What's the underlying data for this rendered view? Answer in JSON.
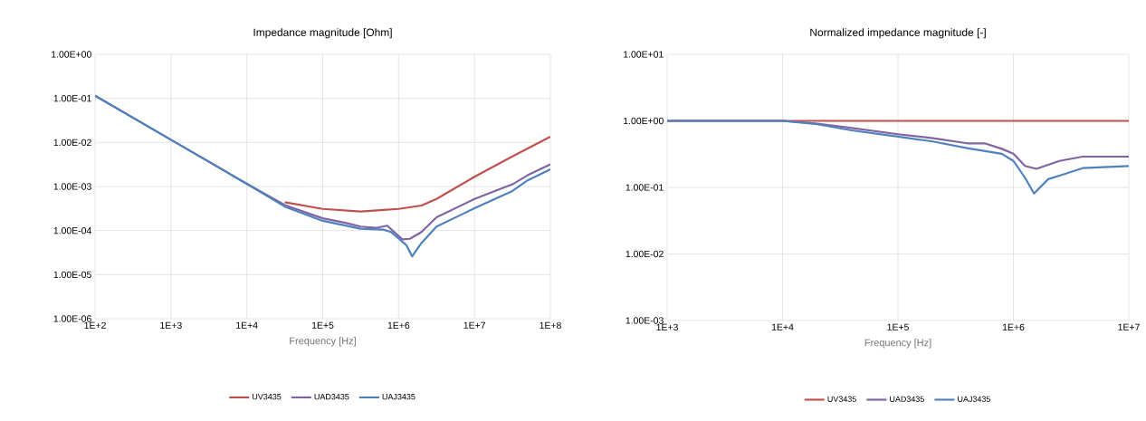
{
  "chart_data": [
    {
      "type": "line",
      "title": "Impedance magnitude [Ohm]",
      "xlabel": "Frequency [Hz]",
      "log": "xy",
      "grid": true,
      "legend": "bottom",
      "xlim": [
        100,
        100000000
      ],
      "ylim": [
        1e-06,
        1
      ],
      "xticks": [
        {
          "value": 100,
          "label": "1E+2"
        },
        {
          "value": 1000,
          "label": "1E+3"
        },
        {
          "value": 10000,
          "label": "1E+4"
        },
        {
          "value": 100000,
          "label": "1E+5"
        },
        {
          "value": 1000000,
          "label": "1E+6"
        },
        {
          "value": 10000000,
          "label": "1E+7"
        },
        {
          "value": 100000000,
          "label": "1E+8"
        }
      ],
      "yticks": [
        {
          "value": 1e-06,
          "label": "1.00E-06"
        },
        {
          "value": 1e-05,
          "label": "1.00E-05"
        },
        {
          "value": 0.0001,
          "label": "1.00E-04"
        },
        {
          "value": 0.001,
          "label": "1.00E-03"
        },
        {
          "value": 0.01,
          "label": "1.00E-02"
        },
        {
          "value": 0.1,
          "label": "1.00E-01"
        },
        {
          "value": 1,
          "label": "1.00E+00"
        }
      ],
      "series": [
        {
          "name": "UV3435",
          "color": "#c0504d",
          "x": [
            31600,
            100000,
            316000,
            631000,
            1000000,
            2000000,
            3160000,
            10000000,
            31600000,
            100000000
          ],
          "values": [
            0.00044,
            0.00031,
            0.00027,
            0.000295,
            0.00031,
            0.00037,
            0.00052,
            0.00166,
            0.0048,
            0.0135
          ]
        },
        {
          "name": "UAD3435",
          "color": "#8064a2",
          "x": [
            100,
            1000,
            10000,
            31600,
            100000,
            200000,
            316000,
            501000,
            708000,
            1120000,
            1410000,
            2000000,
            3160000,
            10000000,
            31600000,
            50100000,
            100000000
          ],
          "values": [
            0.115,
            0.0115,
            0.00115,
            0.00038,
            0.00019,
            0.00015,
            0.000123,
            0.000115,
            0.000129,
            6.3e-05,
            6.5e-05,
            9.3e-05,
            0.0002,
            0.00052,
            0.00112,
            0.0018,
            0.0032
          ]
        },
        {
          "name": "UAJ3435",
          "color": "#4f81bd",
          "x": [
            100,
            1000,
            10000,
            31600,
            100000,
            316000,
            631000,
            794000,
            1260000,
            1510000,
            2000000,
            3160000,
            10000000,
            31600000,
            50100000,
            100000000
          ],
          "values": [
            0.115,
            0.0115,
            0.00115,
            0.00035,
            0.000166,
            0.00011,
            0.000105,
            9.3e-05,
            4.7e-05,
            2.6e-05,
            5.2e-05,
            0.000123,
            0.00032,
            0.00079,
            0.00138,
            0.00245
          ]
        }
      ]
    },
    {
      "type": "line",
      "title": "Normalized impedance magnitude [-]",
      "xlabel": "Frequency [Hz]",
      "log": "xy",
      "grid": true,
      "legend": "bottom",
      "xlim": [
        1000,
        10000000
      ],
      "ylim": [
        0.001,
        10
      ],
      "xticks": [
        {
          "value": 1000,
          "label": "1E+3"
        },
        {
          "value": 10000,
          "label": "1E+4"
        },
        {
          "value": 100000,
          "label": "1E+5"
        },
        {
          "value": 1000000,
          "label": "1E+6"
        },
        {
          "value": 10000000,
          "label": "1E+7"
        }
      ],
      "yticks": [
        {
          "value": 0.001,
          "label": "1.00E-03"
        },
        {
          "value": 0.01,
          "label": "1.00E-02"
        },
        {
          "value": 0.1,
          "label": "1.00E-01"
        },
        {
          "value": 1,
          "label": "1.00E+00"
        },
        {
          "value": 10,
          "label": "1.00E+01"
        }
      ],
      "series": [
        {
          "name": "UV3435",
          "color": "#c0504d",
          "x": [
            1000,
            10000000
          ],
          "values": [
            1,
            1
          ]
        },
        {
          "name": "UAD3435",
          "color": "#8064a2",
          "x": [
            1000,
            10000,
            20000,
            39800,
            100000,
            200000,
            398000,
            562000,
            794000,
            1000000,
            1260000,
            1580000,
            2510000,
            3980000,
            10000000
          ],
          "values": [
            1,
            1,
            0.91,
            0.78,
            0.63,
            0.55,
            0.46,
            0.46,
            0.38,
            0.32,
            0.21,
            0.19,
            0.25,
            0.29,
            0.29
          ]
        },
        {
          "name": "UAJ3435",
          "color": "#4f81bd",
          "x": [
            1000,
            10000,
            20000,
            39800,
            100000,
            200000,
            398000,
            794000,
            1000000,
            1260000,
            1510000,
            2000000,
            2510000,
            3980000,
            10000000
          ],
          "values": [
            1,
            1,
            0.89,
            0.72,
            0.58,
            0.49,
            0.39,
            0.32,
            0.25,
            0.14,
            0.081,
            0.133,
            0.15,
            0.195,
            0.21
          ]
        }
      ]
    }
  ]
}
